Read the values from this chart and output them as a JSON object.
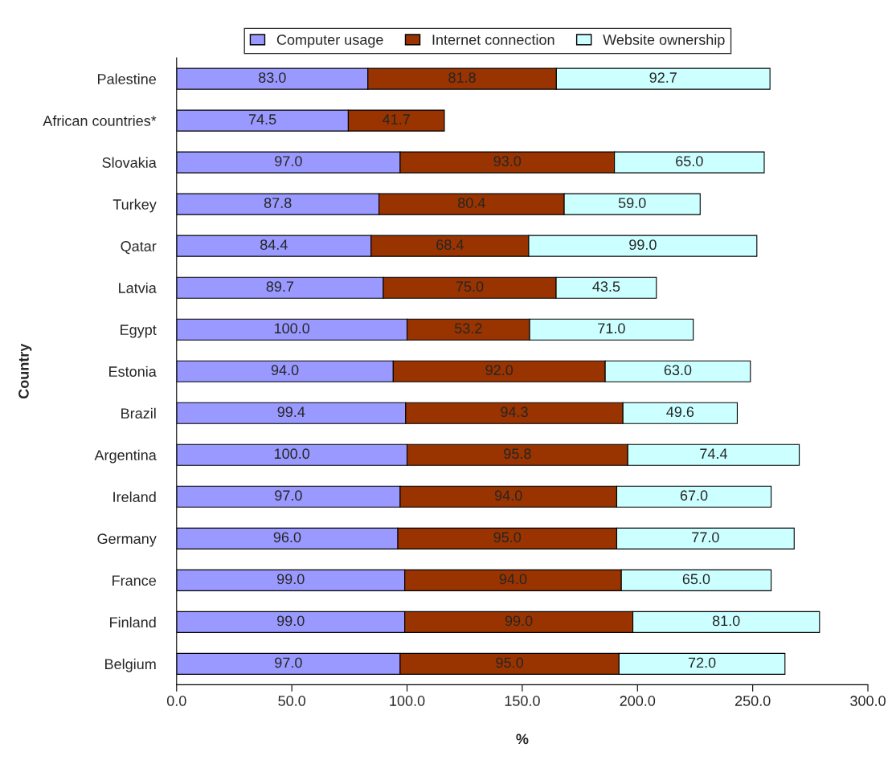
{
  "chart_data": {
    "type": "bar",
    "orientation": "horizontal",
    "stacked": true,
    "categories": [
      "Palestine",
      "African countries*",
      "Slovakia",
      "Turkey",
      "Qatar",
      "Latvia",
      "Egypt",
      "Estonia",
      "Brazil",
      "Argentina",
      "Ireland",
      "Germany",
      "France",
      "Finland",
      "Belgium"
    ],
    "series": [
      {
        "name": "Computer usage",
        "color": "#9999ff",
        "values": [
          83.0,
          74.5,
          97.0,
          87.8,
          84.4,
          89.7,
          100.0,
          94.0,
          99.4,
          100.0,
          97.0,
          96.0,
          99.0,
          99.0,
          97.0
        ],
        "value_labels": [
          "83.0",
          "74.5",
          "97.0",
          "87.8",
          "84.4",
          "89.7",
          "100.0",
          "94.0",
          "99.4",
          "100.0",
          "97.0",
          "96.0",
          "99.0",
          "99.0",
          "97.0"
        ]
      },
      {
        "name": "Internet connection",
        "color": "#993300",
        "values": [
          81.8,
          41.7,
          93.0,
          80.4,
          68.4,
          75.0,
          53.2,
          92.0,
          94.3,
          95.8,
          94.0,
          95.0,
          94.0,
          99.0,
          95.0
        ],
        "value_labels": [
          "81.8",
          "41.7",
          "93.0",
          "80.4",
          "68.4",
          "75.0",
          "53.2",
          "92.0",
          "94.3",
          "95.8",
          "94.0",
          "95.0",
          "94.0",
          "99.0",
          "95.0"
        ]
      },
      {
        "name": "Website ownership",
        "color": "#ccffff",
        "values": [
          92.7,
          null,
          65.0,
          59.0,
          99.0,
          43.5,
          71.0,
          63.0,
          49.6,
          74.4,
          67.0,
          77.0,
          65.0,
          81.0,
          72.0
        ],
        "value_labels": [
          "92.7",
          null,
          "65.0",
          "59.0",
          "99.0",
          "43.5",
          "71.0",
          "63.0",
          "49.6",
          "74.4",
          "67.0",
          "77.0",
          "65.0",
          "81.0",
          "72.0"
        ]
      }
    ],
    "xlim": [
      0,
      300
    ],
    "xticks": [
      {
        "value": 0,
        "label": "0.0"
      },
      {
        "value": 50,
        "label": "50.0"
      },
      {
        "value": 100,
        "label": "100.0"
      },
      {
        "value": 150,
        "label": "150.0"
      },
      {
        "value": 200,
        "label": "200.0"
      },
      {
        "value": 250,
        "label": "250.0"
      },
      {
        "value": 300,
        "label": "300.0"
      }
    ],
    "xlabel": "%",
    "ylabel": "Country",
    "legend": "top",
    "grid": false
  }
}
